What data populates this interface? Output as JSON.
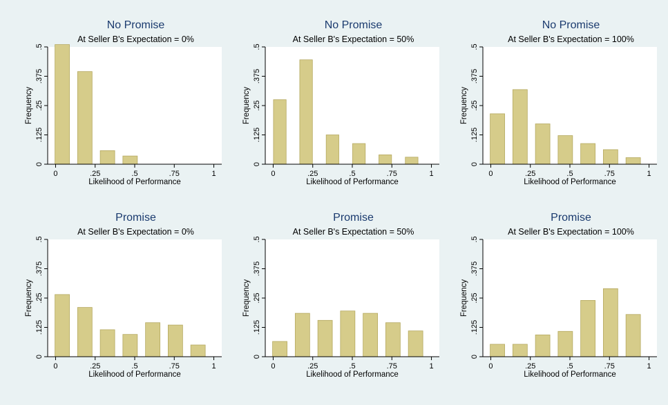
{
  "figure": {
    "background": "#eaf2f3",
    "plot_background": "#ffffff",
    "bar_fill": "#d6cc8a",
    "bar_stroke": "#b5a960",
    "title_color": "#1a3a6e"
  },
  "chart_data": [
    {
      "type": "bar",
      "title": "No Promise",
      "subtitle": "At Seller B's Expectation = 0%",
      "xlabel": "Likelihood of Performance",
      "ylabel": "Frequency",
      "xlim": [
        -0.05,
        1.05
      ],
      "ylim": [
        0,
        0.5
      ],
      "xticks": [
        "0",
        ".25",
        ".5",
        ".75",
        "1"
      ],
      "yticks": [
        "0",
        ".125",
        ".25",
        ".375",
        ".5"
      ],
      "bin_width": 0.143,
      "bin_centers": [
        0.042,
        0.185,
        0.328,
        0.471,
        0.614,
        0.757,
        0.9
      ],
      "values": [
        0.51,
        0.395,
        0.058,
        0.035,
        0,
        0,
        0
      ]
    },
    {
      "type": "bar",
      "title": "No Promise",
      "subtitle": "At Seller B's Expectation = 50%",
      "xlabel": "Likelihood of Performance",
      "ylabel": "Frequency",
      "xlim": [
        -0.05,
        1.05
      ],
      "ylim": [
        0,
        0.5
      ],
      "xticks": [
        "0",
        ".25",
        ".5",
        ".75",
        "1"
      ],
      "yticks": [
        "0",
        ".125",
        ".25",
        ".375",
        ".5"
      ],
      "bin_width": 0.125,
      "bin_centers": [
        0.042,
        0.208,
        0.375,
        0.542,
        0.708,
        0.875
      ],
      "values": [
        0.275,
        0.445,
        0.125,
        0.088,
        0.04,
        0.03
      ]
    },
    {
      "type": "bar",
      "title": "No Promise",
      "subtitle": "At Seller B's Expectation = 100%",
      "xlabel": "Likelihood of Performance",
      "ylabel": "Frequency",
      "xlim": [
        -0.05,
        1.05
      ],
      "ylim": [
        0,
        0.5
      ],
      "xticks": [
        "0",
        ".25",
        ".5",
        ".75",
        "1"
      ],
      "yticks": [
        "0",
        ".125",
        ".25",
        ".375",
        ".5"
      ],
      "bin_width": 0.143,
      "bin_centers": [
        0.042,
        0.185,
        0.328,
        0.471,
        0.614,
        0.757,
        0.9
      ],
      "values": [
        0.215,
        0.318,
        0.172,
        0.122,
        0.088,
        0.062,
        0.028
      ]
    },
    {
      "type": "bar",
      "title": "Promise",
      "subtitle": "At Seller B's Expectation = 0%",
      "xlabel": "Likelihood of Performance",
      "ylabel": "Frequency",
      "xlim": [
        -0.05,
        1.05
      ],
      "ylim": [
        0,
        0.5
      ],
      "xticks": [
        "0",
        ".25",
        ".5",
        ".75",
        "1"
      ],
      "yticks": [
        "0",
        ".125",
        ".25",
        ".375",
        ".5"
      ],
      "bin_width": 0.143,
      "bin_centers": [
        0.042,
        0.185,
        0.328,
        0.471,
        0.614,
        0.757,
        0.9
      ],
      "values": [
        0.265,
        0.21,
        0.115,
        0.095,
        0.145,
        0.135,
        0.05
      ]
    },
    {
      "type": "bar",
      "title": "Promise",
      "subtitle": "At Seller B's Expectation = 50%",
      "xlabel": "Likelihood of Performance",
      "ylabel": "Frequency",
      "xlim": [
        -0.05,
        1.05
      ],
      "ylim": [
        0,
        0.5
      ],
      "xticks": [
        "0",
        ".25",
        ".5",
        ".75",
        "1"
      ],
      "yticks": [
        "0",
        ".125",
        ".25",
        ".375",
        ".5"
      ],
      "bin_width": 0.143,
      "bin_centers": [
        0.042,
        0.185,
        0.328,
        0.471,
        0.614,
        0.757,
        0.9
      ],
      "values": [
        0.065,
        0.185,
        0.155,
        0.195,
        0.185,
        0.145,
        0.11
      ]
    },
    {
      "type": "bar",
      "title": "Promise",
      "subtitle": "At Seller B's Expectation = 100%",
      "xlabel": "Likelihood of Performance",
      "ylabel": "Frequency",
      "xlim": [
        -0.05,
        1.05
      ],
      "ylim": [
        0,
        0.5
      ],
      "xticks": [
        "0",
        ".25",
        ".5",
        ".75",
        "1"
      ],
      "yticks": [
        "0",
        ".125",
        ".25",
        ".375",
        ".5"
      ],
      "bin_width": 0.143,
      "bin_centers": [
        0.042,
        0.185,
        0.328,
        0.471,
        0.614,
        0.757,
        0.9
      ],
      "values": [
        0.053,
        0.053,
        0.093,
        0.108,
        0.24,
        0.29,
        0.18
      ]
    }
  ]
}
